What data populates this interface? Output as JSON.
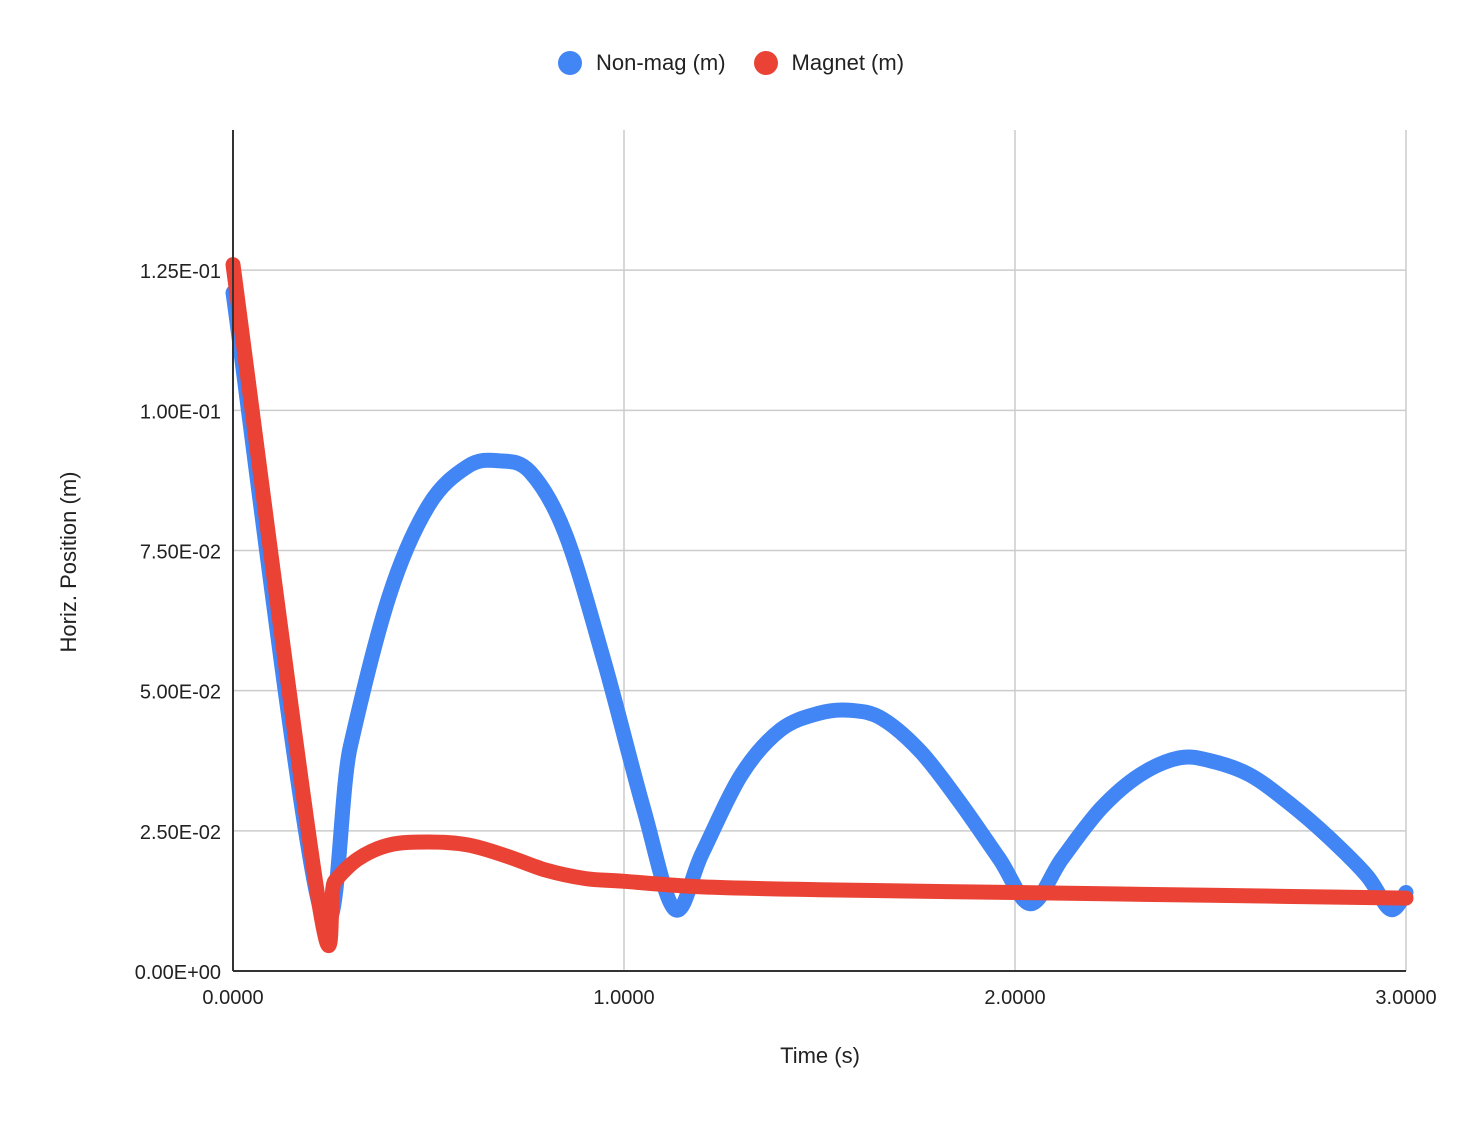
{
  "chart_data": {
    "type": "line",
    "title": "",
    "xlabel": "Time (s)",
    "ylabel": "Horiz. Position (m)",
    "xlim": [
      0,
      3
    ],
    "ylim": [
      0,
      0.15
    ],
    "grid": true,
    "legend_position": "top",
    "x_ticks": [
      "0.0000",
      "1.0000",
      "2.0000",
      "3.0000"
    ],
    "x_tick_values": [
      0,
      1,
      2,
      3
    ],
    "y_ticks": [
      "0.00E+00",
      "2.50E-02",
      "5.00E-02",
      "7.50E-02",
      "1.00E-01",
      "1.25E-01"
    ],
    "y_tick_values": [
      0,
      0.025,
      0.05,
      0.075,
      0.1,
      0.125
    ],
    "series": [
      {
        "name": "Non-mag (m)",
        "color": "#4285f4",
        "points": [
          [
            0.0,
            0.121
          ],
          [
            0.22,
            0.012
          ],
          [
            0.3,
            0.04
          ],
          [
            0.4,
            0.067
          ],
          [
            0.5,
            0.083
          ],
          [
            0.6,
            0.09
          ],
          [
            0.68,
            0.091
          ],
          [
            0.76,
            0.089
          ],
          [
            0.85,
            0.078
          ],
          [
            0.95,
            0.055
          ],
          [
            1.05,
            0.029
          ],
          [
            1.13,
            0.011
          ],
          [
            1.2,
            0.021
          ],
          [
            1.3,
            0.035
          ],
          [
            1.4,
            0.043
          ],
          [
            1.5,
            0.046
          ],
          [
            1.58,
            0.0465
          ],
          [
            1.66,
            0.045
          ],
          [
            1.76,
            0.039
          ],
          [
            1.86,
            0.03
          ],
          [
            1.96,
            0.02
          ],
          [
            2.04,
            0.012
          ],
          [
            2.12,
            0.02
          ],
          [
            2.22,
            0.029
          ],
          [
            2.32,
            0.035
          ],
          [
            2.42,
            0.038
          ],
          [
            2.5,
            0.0375
          ],
          [
            2.6,
            0.035
          ],
          [
            2.7,
            0.03
          ],
          [
            2.8,
            0.024
          ],
          [
            2.9,
            0.017
          ],
          [
            2.96,
            0.011
          ],
          [
            3.0,
            0.014
          ]
        ]
      },
      {
        "name": "Magnet (m)",
        "color": "#ea4335",
        "points": [
          [
            0.0,
            0.126
          ],
          [
            0.22,
            0.012
          ],
          [
            0.26,
            0.016
          ],
          [
            0.32,
            0.02
          ],
          [
            0.4,
            0.0225
          ],
          [
            0.5,
            0.023
          ],
          [
            0.6,
            0.0225
          ],
          [
            0.7,
            0.0205
          ],
          [
            0.8,
            0.018
          ],
          [
            0.9,
            0.0165
          ],
          [
            1.0,
            0.016
          ],
          [
            1.2,
            0.015
          ],
          [
            1.5,
            0.0145
          ],
          [
            2.0,
            0.014
          ],
          [
            2.5,
            0.0135
          ],
          [
            3.0,
            0.013
          ]
        ]
      }
    ]
  }
}
